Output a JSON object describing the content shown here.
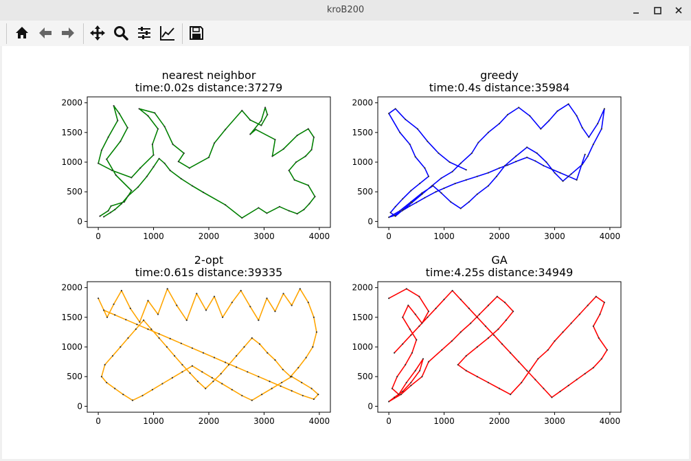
{
  "window": {
    "title": "kroB200"
  },
  "toolbar": {
    "icons": [
      "home-icon",
      "back-arrow-icon",
      "forward-arrow-icon",
      "pan-icon",
      "zoom-icon",
      "configure-subplots-icon",
      "edit-axis-icon",
      "save-icon"
    ]
  },
  "chart_data": [
    {
      "type": "line",
      "title": "nearest neighbor",
      "subtitle": "time:0.02s distance:37279",
      "color": "#008000",
      "xlim": [
        -200,
        4200
      ],
      "ylim": [
        -100,
        2100
      ],
      "xticks": [
        0,
        1000,
        2000,
        3000,
        4000
      ],
      "yticks": [
        0,
        500,
        1000,
        1500,
        2000
      ],
      "x": [
        30,
        180,
        230,
        470,
        600,
        320,
        150,
        400,
        530,
        380,
        280,
        350,
        180,
        60,
        0,
        250,
        600,
        760,
        1000,
        980,
        1080,
        900,
        740,
        1020,
        1200,
        1350,
        1550,
        1450,
        1650,
        2000,
        2100,
        2300,
        2600,
        2750,
        2950,
        3060,
        3020,
        2950,
        2750,
        2850,
        3200,
        3150,
        3350,
        3600,
        3800,
        3900,
        3860,
        3750,
        3580,
        3450,
        3550,
        3800,
        3920,
        3820,
        3720,
        3600,
        3450,
        3280,
        3050,
        2900,
        2600,
        2300,
        1900,
        1700,
        1500,
        1300,
        1200,
        1100,
        1000,
        880,
        720,
        540,
        420,
        300,
        220,
        100
      ],
      "y": [
        90,
        180,
        260,
        330,
        520,
        780,
        1050,
        1350,
        1580,
        1820,
        1950,
        1700,
        1420,
        1200,
        980,
        860,
        740,
        900,
        1120,
        1300,
        1560,
        1780,
        1900,
        1830,
        1600,
        1300,
        1150,
        1010,
        900,
        1080,
        1320,
        1550,
        1870,
        1710,
        1620,
        1800,
        1920,
        1700,
        1470,
        1550,
        1380,
        1100,
        1220,
        1450,
        1560,
        1420,
        1210,
        1100,
        1000,
        860,
        700,
        610,
        420,
        300,
        200,
        130,
        180,
        250,
        140,
        230,
        60,
        280,
        490,
        600,
        720,
        860,
        980,
        1060,
        920,
        760,
        580,
        430,
        300,
        200,
        150,
        80
      ]
    },
    {
      "type": "line",
      "title": "greedy",
      "subtitle": "time:0.4s distance:35984",
      "color": "#0000ff",
      "xlim": [
        -200,
        4200
      ],
      "ylim": [
        -100,
        2100
      ],
      "xticks": [
        0,
        1000,
        2000,
        3000,
        4000
      ],
      "yticks": [
        0,
        500,
        1000,
        1500,
        2000
      ],
      "x": [
        1400,
        1100,
        900,
        700,
        520,
        300,
        120,
        0,
        200,
        380,
        480,
        650,
        720,
        560,
        400,
        250,
        120,
        30,
        120,
        260,
        420,
        600,
        780,
        950,
        1150,
        1300,
        1500,
        1620,
        1800,
        2000,
        2150,
        2350,
        2550,
        2750,
        2900,
        3050,
        3250,
        3400,
        3500,
        3620,
        3780,
        3900,
        3850,
        3700,
        3600,
        3500,
        3300,
        3150,
        3000,
        2850,
        2680,
        2500,
        2300,
        2100,
        1950,
        1800,
        1600,
        1450,
        1300,
        1120,
        950,
        800,
        600,
        400,
        200,
        0,
        100,
        240,
        380,
        500,
        650,
        850,
        1000,
        1200,
        1400,
        1600,
        1800,
        2000,
        2150,
        2300,
        2500,
        2650,
        2800,
        2950,
        3100,
        3250,
        3400,
        3550
      ],
      "y": [
        870,
        1000,
        1150,
        1350,
        1560,
        1720,
        1900,
        1820,
        1500,
        1300,
        1090,
        900,
        760,
        640,
        520,
        380,
        250,
        150,
        90,
        200,
        320,
        460,
        600,
        730,
        840,
        980,
        1150,
        1330,
        1500,
        1650,
        1800,
        1920,
        1780,
        1560,
        1700,
        1860,
        1980,
        1780,
        1580,
        1420,
        1650,
        1900,
        1560,
        1300,
        1100,
        960,
        800,
        680,
        820,
        1000,
        1150,
        1250,
        1100,
        940,
        760,
        600,
        460,
        330,
        220,
        330,
        480,
        600,
        480,
        330,
        180,
        70,
        100,
        180,
        260,
        320,
        400,
        500,
        560,
        640,
        700,
        760,
        820,
        900,
        950,
        1010,
        1080,
        1020,
        940,
        880,
        820,
        760,
        700,
        1130
      ]
    },
    {
      "type": "line",
      "title": "2-opt",
      "subtitle": "time:0.61s distance:39335",
      "color": "#ffa500",
      "xlim": [
        -200,
        4200
      ],
      "ylim": [
        -100,
        2100
      ],
      "xticks": [
        0,
        1000,
        2000,
        3000,
        4000
      ],
      "yticks": [
        0,
        500,
        1000,
        1500,
        2000
      ],
      "x": [
        0,
        160,
        280,
        420,
        580,
        750,
        900,
        1080,
        1250,
        1420,
        1600,
        1780,
        1950,
        2100,
        2250,
        2420,
        2580,
        2750,
        2900,
        3050,
        3200,
        3350,
        3500,
        3650,
        3800,
        3900,
        3950,
        3880,
        3760,
        3620,
        3480,
        3340,
        3200,
        3060,
        2920,
        2780,
        2640,
        2500,
        2360,
        2220,
        2080,
        1940,
        1800,
        1660,
        1520,
        1380,
        1240,
        1100,
        960,
        820,
        680,
        540,
        400,
        260,
        120,
        60,
        150,
        300,
        450,
        620,
        800,
        980,
        1160,
        1340,
        1520,
        1700,
        1880,
        2060,
        2240,
        2420,
        2600,
        2780,
        2960,
        3140,
        3320,
        3500,
        3680,
        3860,
        3980,
        3900,
        3700,
        3500,
        3300,
        3100,
        2900,
        2700,
        2500,
        2300,
        2100,
        1900,
        1700,
        1500,
        1300,
        1100,
        900,
        700,
        500,
        300,
        100
      ],
      "y": [
        1820,
        1500,
        1720,
        1950,
        1650,
        1420,
        1780,
        1550,
        1980,
        1700,
        1450,
        1900,
        1620,
        1850,
        1500,
        1750,
        1950,
        1680,
        1450,
        1820,
        1600,
        1900,
        1700,
        1980,
        1750,
        1500,
        1250,
        1000,
        820,
        650,
        500,
        620,
        780,
        900,
        1050,
        1150,
        1000,
        850,
        700,
        550,
        420,
        300,
        420,
        560,
        700,
        850,
        1000,
        1150,
        1300,
        1450,
        1300,
        1150,
        1000,
        850,
        700,
        500,
        400,
        300,
        200,
        100,
        180,
        280,
        380,
        480,
        580,
        680,
        580,
        480,
        380,
        280,
        180,
        100,
        200,
        300,
        400,
        500,
        400,
        300,
        200,
        120,
        180,
        260,
        340,
        420,
        500,
        580,
        660,
        740,
        820,
        900,
        980,
        1060,
        1140,
        1220,
        1300,
        1380,
        1460,
        1540,
        1620
      ]
    },
    {
      "type": "line",
      "title": "GA",
      "subtitle": "time:4.25s distance:34949",
      "color": "#ff0000",
      "xlim": [
        -200,
        4200
      ],
      "ylim": [
        -100,
        2100
      ],
      "xticks": [
        0,
        1000,
        2000,
        3000,
        4000
      ],
      "yticks": [
        0,
        500,
        1000,
        1500,
        2000
      ],
      "x": [
        0,
        320,
        550,
        720,
        600,
        480,
        350,
        250,
        380,
        500,
        420,
        300,
        150,
        60,
        180,
        320,
        480,
        620,
        560,
        400,
        250,
        100,
        0,
        220,
        400,
        600,
        720,
        960,
        1140,
        1300,
        1480,
        1640,
        1800,
        1960,
        2100,
        2250,
        2120,
        1980,
        1800,
        1600,
        1400,
        1250,
        1400,
        1600,
        1800,
        2000,
        2200,
        2400,
        2550,
        2700,
        2880,
        3000,
        3150,
        3300,
        3450,
        3600,
        3750,
        3900,
        3820,
        3700,
        3800,
        3950,
        3850,
        3700,
        3550,
        3400,
        3250,
        3100,
        2950,
        2800,
        2650,
        2500,
        2350,
        2200,
        2050,
        1900,
        1750,
        1600,
        1450,
        1300,
        1150,
        1000,
        850,
        700,
        550,
        400,
        250,
        100
      ],
      "y": [
        1820,
        1980,
        1850,
        1600,
        1400,
        1550,
        1700,
        1500,
        1300,
        1120,
        900,
        700,
        500,
        300,
        200,
        400,
        600,
        800,
        600,
        400,
        250,
        150,
        80,
        200,
        350,
        500,
        750,
        950,
        1100,
        1250,
        1400,
        1550,
        1700,
        1850,
        1750,
        1600,
        1450,
        1300,
        1150,
        1000,
        850,
        700,
        600,
        500,
        400,
        300,
        200,
        400,
        600,
        800,
        950,
        1100,
        1250,
        1400,
        1550,
        1700,
        1850,
        1750,
        1550,
        1350,
        1150,
        950,
        800,
        650,
        550,
        450,
        350,
        250,
        150,
        300,
        450,
        600,
        750,
        900,
        1050,
        1200,
        1350,
        1500,
        1650,
        1800,
        1950,
        1800,
        1650,
        1500,
        1350,
        1200,
        1050,
        900
      ]
    }
  ]
}
